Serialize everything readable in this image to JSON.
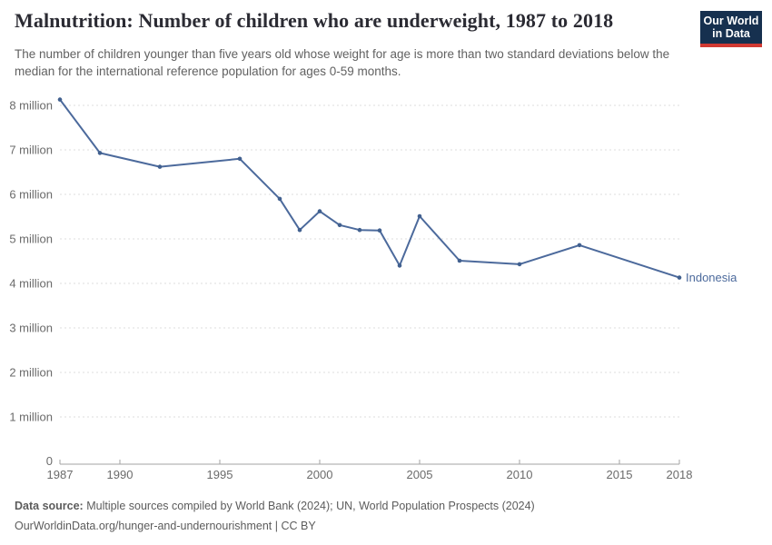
{
  "header": {
    "title": "Malnutrition: Number of children who are underweight, 1987 to 2018",
    "subtitle": "The number of children younger than five years old whose weight for age is more than two standard deviations below the median for the international reference population for ages 0-59 months."
  },
  "logo": {
    "line1": "Our World",
    "line2": "in Data",
    "bg_color": "#16304f",
    "stripe_color": "#d13932"
  },
  "chart_data": {
    "type": "line",
    "title": "Malnutrition: Number of children who are underweight, 1987 to 2018",
    "xlabel": "",
    "ylabel": "",
    "x": [
      1987,
      1989,
      1992,
      1996,
      1998,
      1999,
      2000,
      2001,
      2002,
      2003,
      2004,
      2005,
      2007,
      2010,
      2013,
      2018
    ],
    "series": [
      {
        "name": "Indonesia",
        "values": [
          8.13,
          6.93,
          6.62,
          6.8,
          5.9,
          5.2,
          5.62,
          5.31,
          5.2,
          5.19,
          4.4,
          5.51,
          4.51,
          4.43,
          4.86,
          4.13
        ]
      }
    ],
    "unit": "million children",
    "xlim": [
      1987,
      2018
    ],
    "ylim": [
      0,
      8.3
    ],
    "x_ticks": [
      1987,
      1990,
      1995,
      2000,
      2005,
      2010,
      2015,
      2018
    ],
    "y_ticks": [
      {
        "v": 0,
        "label": "0"
      },
      {
        "v": 1,
        "label": "1 million"
      },
      {
        "v": 2,
        "label": "2 million"
      },
      {
        "v": 3,
        "label": "3 million"
      },
      {
        "v": 4,
        "label": "4 million"
      },
      {
        "v": 5,
        "label": "5 million"
      },
      {
        "v": 6,
        "label": "6 million"
      },
      {
        "v": 7,
        "label": "7 million"
      },
      {
        "v": 8,
        "label": "8 million"
      },
      {
        "v": 8,
        "label": "8 million"
      }
    ],
    "grid": "horizontal-dashed",
    "legend_position": "line-end-label",
    "entity_label": "Indonesia",
    "colors": {
      "line": "#4c6a9c",
      "marker": "#41608f",
      "grid": "#dcdcdc",
      "axis": "#a3a3a3",
      "tick_text": "#6b6b6b"
    }
  },
  "footer": {
    "datasource_label": "Data source:",
    "datasource_text": " Multiple sources compiled by World Bank (2024); UN, World Population Prospects (2024)",
    "url_text": "OurWorldinData.org/hunger-and-undernourishment",
    "license_text": " | CC BY"
  }
}
